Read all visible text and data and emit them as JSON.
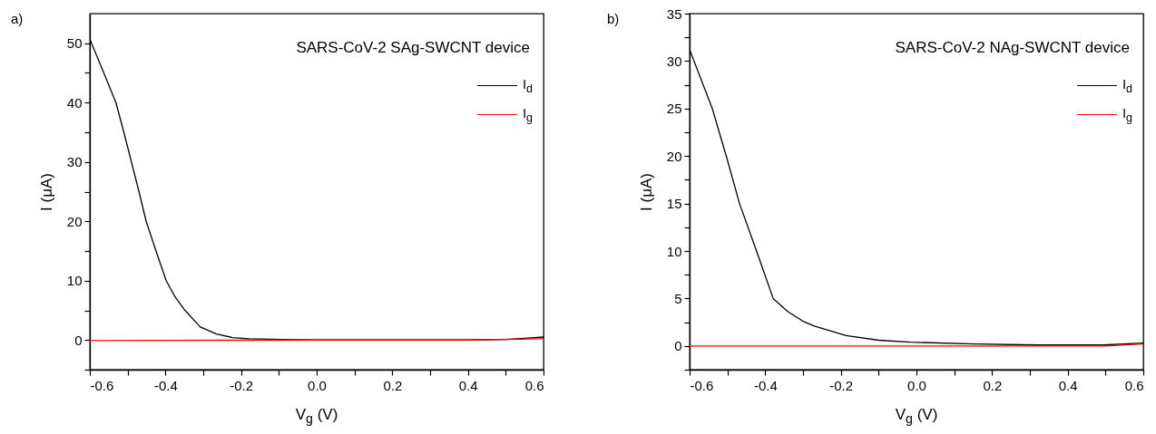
{
  "chart_data": [
    {
      "type": "line",
      "title": "a)",
      "annotations": [
        "SARS-CoV-2 SAg-SWCNT device"
      ],
      "xlabel": "V$_{g}$ (V)",
      "ylabel": "I (μA)",
      "legend": "top right",
      "grid": false,
      "marker": "none",
      "line_style": "solid",
      "xlim": [
        -0.6,
        0.6
      ],
      "xticks": [
        -0.6,
        {
          "value": -0.5,
          "label": null
        },
        -0.4,
        {
          "value": -0.3,
          "label": null
        },
        -0.2,
        {
          "value": -0.1,
          "label": null
        },
        {
          "value": 0,
          "label": "0.0"
        },
        {
          "value": 0.1,
          "label": null
        },
        0.2,
        {
          "value": 0.3,
          "label": null
        },
        0.4,
        {
          "value": 0.5,
          "label": null
        },
        0.6
      ],
      "ylim": [
        -5,
        55
      ],
      "yticks": [
        {
          "value": -5,
          "label": null
        },
        0,
        {
          "value": 5,
          "label": null
        },
        10,
        {
          "value": 15,
          "label": null
        },
        20,
        {
          "value": 25,
          "label": null
        },
        30,
        {
          "value": 35,
          "label": null
        },
        40,
        {
          "value": 45,
          "label": null
        },
        50
      ],
      "series": [
        {
          "name": "I$_{d}$",
          "color": "#000000",
          "x": [
            -0.6,
            -0.565,
            -0.531,
            -0.51,
            -0.49,
            -0.47,
            -0.451,
            -0.425,
            -0.398,
            -0.375,
            -0.351,
            -0.308,
            -0.265,
            -0.222,
            -0.179,
            -0.094,
            0,
            0.2,
            0.4,
            0.5,
            0.55,
            0.6
          ],
          "values": [
            50.7,
            45.3,
            40,
            35,
            30,
            25,
            20,
            15,
            10,
            7.3,
            5.2,
            2.2,
            1.0,
            0.4,
            0.2,
            0.1,
            0,
            0,
            0,
            0.1,
            0.3,
            0.5
          ]
        },
        {
          "name": "I$_{g}$",
          "color": "#ff0000",
          "x": [
            -0.6,
            0,
            0.4,
            0.6
          ],
          "values": [
            -0.1,
            0,
            0,
            0.2
          ]
        }
      ]
    },
    {
      "type": "line",
      "title": "b)",
      "annotations": [
        "SARS-CoV-2 NAg-SWCNT device"
      ],
      "xlabel": "V$_{g}$ (V)",
      "ylabel": "I (μA)",
      "legend": "top right",
      "grid": false,
      "marker": "none",
      "line_style": "solid",
      "xlim": [
        -0.6,
        0.6
      ],
      "xticks": [
        -0.6,
        {
          "value": -0.5,
          "label": null
        },
        -0.4,
        {
          "value": -0.3,
          "label": null
        },
        -0.2,
        {
          "value": -0.1,
          "label": null
        },
        {
          "value": 0,
          "label": "0.0"
        },
        {
          "value": 0.1,
          "label": null
        },
        0.2,
        {
          "value": 0.3,
          "label": null
        },
        0.4,
        {
          "value": 0.5,
          "label": null
        },
        0.6
      ],
      "ylim": [
        -2.5,
        35
      ],
      "yticks": [
        {
          "value": -2.5,
          "label": null
        },
        0,
        {
          "value": 2.5,
          "label": null
        },
        5,
        {
          "value": 7.5,
          "label": null
        },
        10,
        {
          "value": 12.5,
          "label": null
        },
        15,
        {
          "value": 17.5,
          "label": null
        },
        20,
        {
          "value": 22.5,
          "label": null
        },
        25,
        {
          "value": 27.5,
          "label": null
        },
        30,
        {
          "value": 32.5,
          "label": null
        },
        35
      ],
      "series": [
        {
          "name": "I$_{d}$",
          "color": "#000000",
          "x": [
            -0.6,
            -0.54,
            -0.503,
            -0.468,
            -0.423,
            -0.379,
            -0.34,
            -0.3,
            -0.27,
            -0.186,
            -0.1,
            -0.016,
            0.154,
            0.324,
            0.493,
            0.6
          ],
          "values": [
            31.2,
            25,
            20,
            15,
            10,
            5,
            3.6,
            2.6,
            2.1,
            1.1,
            0.6,
            0.4,
            0.2,
            0.1,
            0.1,
            0.3
          ]
        },
        {
          "name": "I$_{g}$",
          "color": "#ff0000",
          "x": [
            -0.6,
            0.5,
            0.6
          ],
          "values": [
            0,
            0,
            0.2
          ]
        }
      ]
    }
  ]
}
